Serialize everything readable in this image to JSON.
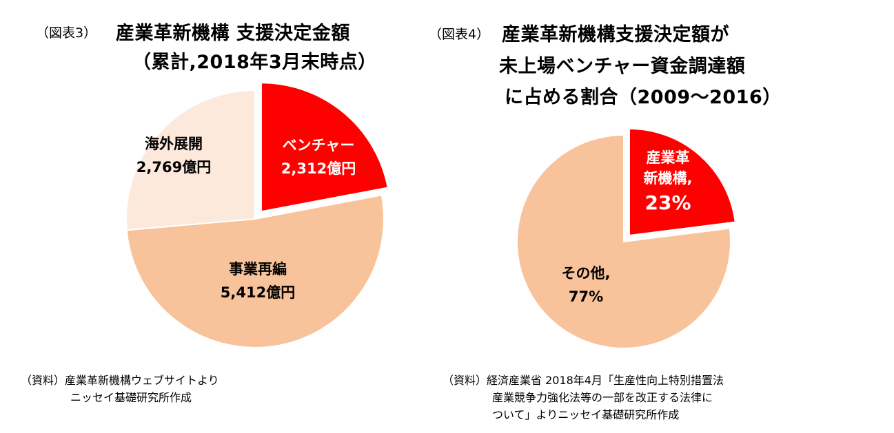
{
  "left": {
    "fig_label": "（図表3）",
    "title_lines": [
      "産業革新機構 支援決定金額",
      "（累計,2018年3月末時点）"
    ],
    "source_lines": [
      "（資料）産業革新機構ウェブサイトより",
      "ニッセイ基礎研究所作成"
    ]
  },
  "right": {
    "fig_label": "（図表4）",
    "title_lines": [
      "産業革新機構支援決定額が",
      "未上場ベンチャー資金調達額",
      "に占める割合（2009～2016）"
    ],
    "source_lines": [
      "（資料）経済産業省 2018年4月「生産性向上特別措置法",
      "産業競争力強化法等の一部を改正する法律に",
      "ついて」よりニッセイ基礎研究所作成"
    ]
  },
  "chart_data": [
    {
      "type": "pie",
      "title": "産業革新機構 支援決定金額（累計,2018年3月末時点）",
      "unit": "億円",
      "slices": [
        {
          "name": "ベンチャー",
          "value": 2312,
          "value_label": "2,312億円",
          "color": "#ff0000",
          "label_color": "#ffffff",
          "exploded": true
        },
        {
          "name": "事業再編",
          "value": 5412,
          "value_label": "5,412億円",
          "color": "#f8c39b",
          "label_color": "#000000",
          "exploded": false
        },
        {
          "name": "海外展開",
          "value": 2769,
          "value_label": "2,769億円",
          "color": "#fde9dc",
          "label_color": "#000000",
          "exploded": false
        }
      ]
    },
    {
      "type": "pie",
      "title": "産業革新機構支援決定額が未上場ベンチャー資金調達額に占める割合（2009～2016）",
      "unit": "%",
      "slices": [
        {
          "name": "産業革新機構,",
          "name_lines": [
            "産業革",
            "新機構,"
          ],
          "value": 23,
          "value_label": "23%",
          "color": "#ff0000",
          "label_color": "#ffffff",
          "exploded": true
        },
        {
          "name": "その他,",
          "value": 77,
          "value_label": "77%",
          "color": "#f8c39b",
          "label_color": "#000000",
          "exploded": false
        }
      ]
    }
  ]
}
